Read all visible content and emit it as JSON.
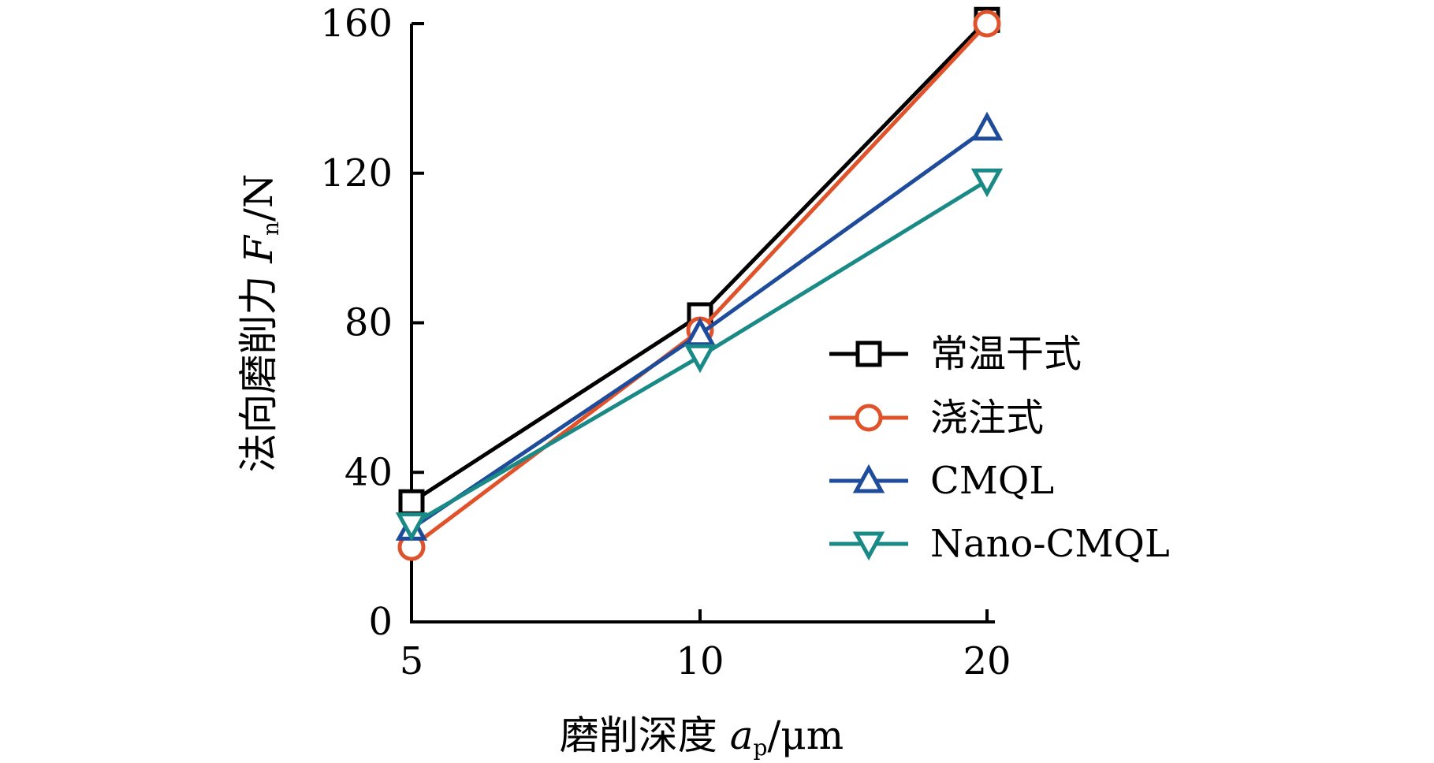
{
  "chart_data": {
    "type": "line",
    "x": [
      "5",
      "10",
      "20"
    ],
    "title": "",
    "xlabel": {
      "prefix": "磨削深度 ",
      "var": "a",
      "sub": "p",
      "unit": "/μm"
    },
    "ylabel": {
      "prefix": "法向磨削力 ",
      "var": "F",
      "sub": "n",
      "unit": "/N"
    },
    "ylim": [
      0,
      160
    ],
    "yticks": [
      "0",
      "40",
      "80",
      "120",
      "160"
    ],
    "grid": false,
    "legend_position": "right",
    "series": [
      {
        "name": "常温干式",
        "marker": "square",
        "color": "#000000",
        "values": [
          32,
          82,
          161
        ]
      },
      {
        "name": "浇注式",
        "marker": "circle",
        "color": "#e0522a",
        "values": [
          20,
          78,
          160
        ]
      },
      {
        "name": "CMQL",
        "marker": "triangle-up",
        "color": "#1e4b9a",
        "values": [
          25,
          77,
          132
        ]
      },
      {
        "name": "Nano-CMQL",
        "marker": "triangle-down",
        "color": "#1a8a86",
        "values": [
          26,
          71,
          118
        ]
      }
    ]
  }
}
